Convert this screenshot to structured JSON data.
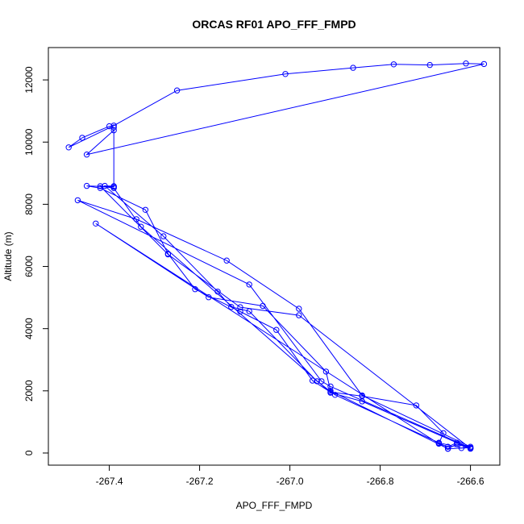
{
  "chart_data": {
    "type": "line",
    "title": "ORCAS RF01 APO_FFF_FMPD",
    "xlabel": "APO_FFF_FMPD",
    "ylabel": "Altitude (m)",
    "xlim": [
      -267.535,
      -266.535
    ],
    "ylim": [
      -390,
      13040
    ],
    "x_ticks": [
      -267.4,
      -267.2,
      -267.0,
      -266.8,
      -266.6
    ],
    "x_tick_labels": [
      "-267.4",
      "-267.2",
      "-267.0",
      "-266.8",
      "-266.6"
    ],
    "y_ticks": [
      0,
      2000,
      4000,
      6000,
      8000,
      10000,
      12000
    ],
    "y_tick_labels": [
      "0",
      "2000",
      "4000",
      "6000",
      "8000",
      "10000",
      "12000"
    ],
    "grid": false,
    "marker": "open-circle",
    "series_color": "#0000ff",
    "series": [
      {
        "x": [
          -266.6,
          -266.63,
          -266.65,
          -266.67,
          -266.66,
          -266.72,
          -266.84,
          -266.91,
          -266.95,
          -267.03,
          -267.11,
          -267.21,
          -267.27,
          -267.32,
          -267.42,
          -267.45,
          -267.39,
          -267.39,
          -267.4,
          -267.46,
          -267.49,
          -267.39,
          -267.25,
          -267.01,
          -266.86,
          -266.77,
          -266.69,
          -266.61,
          -266.57,
          -267.45,
          -267.39,
          -267.39,
          -267.41,
          -267.28,
          -267.16,
          -267.13,
          -267.09,
          -266.94,
          -266.9,
          -266.67,
          -266.62,
          -266.6,
          -266.84,
          -266.98,
          -267.14,
          -267.34,
          -267.47,
          -267.09,
          -266.93,
          -266.91,
          -266.6,
          -266.65,
          -266.67,
          -267.43,
          -267.18,
          -267.06,
          -266.92,
          -266.91,
          -266.65,
          -266.63,
          -266.6,
          -266.98,
          -267.11,
          -267.27,
          -267.42,
          -267.39,
          -267.33,
          -266.91,
          -266.84,
          -266.6
        ],
        "y": [
          150,
          330,
          200,
          310,
          640,
          1530,
          1830,
          1960,
          2330,
          3960,
          4550,
          5270,
          6410,
          7820,
          8520,
          8590,
          8560,
          10470,
          10510,
          10140,
          9830,
          10530,
          11660,
          12190,
          12390,
          12500,
          12480,
          12530,
          12510,
          9600,
          10380,
          8580,
          8590,
          6970,
          5190,
          4700,
          4560,
          2310,
          1870,
          330,
          160,
          200,
          1850,
          4640,
          6190,
          7520,
          8130,
          5420,
          2310,
          2140,
          170,
          140,
          300,
          7380,
          5010,
          4730,
          2620,
          2000,
          140,
          290,
          150,
          4430,
          4690,
          6390,
          8580,
          8520,
          7280,
          1940,
          1660,
          140
        ]
      }
    ]
  }
}
